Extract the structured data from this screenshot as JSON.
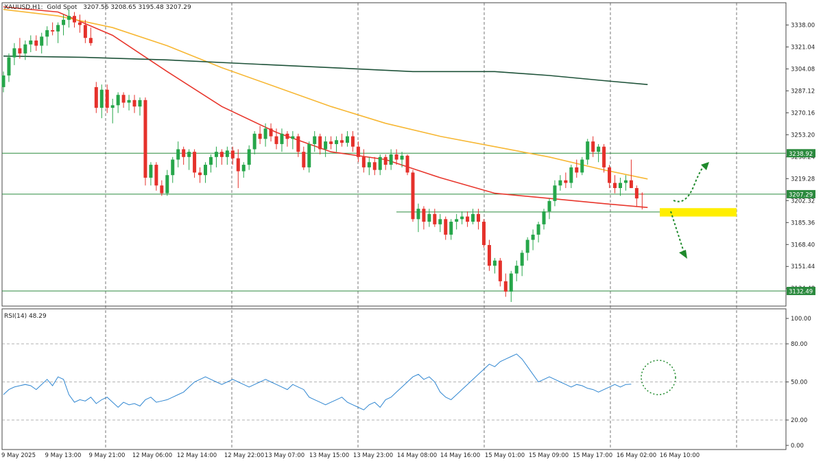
{
  "header": {
    "symbol": "XAUUSD,H1:",
    "description": "Gold Spot",
    "ohlc": "3207.56 3208.65 3195.48 3207.29"
  },
  "rsi_label": "RSI(14) 48.29",
  "colors": {
    "bull": "#26a64a",
    "bear": "#e5312b",
    "ma_fast": "#e8362c",
    "ma_mid": "#f7b733",
    "ma_slow": "#1e5239",
    "level": "#2b8a3e",
    "rsi": "#2f86d1",
    "highlight": "#ffee00",
    "arrow": "#1f8a2c"
  },
  "chart_data": [
    {
      "type": "candlestick",
      "symbol": "XAUUSD",
      "timeframe": "H1",
      "ylim": [
        3124,
        3352
      ],
      "y_ticks": [
        "3338.00",
        "3321.04",
        "3304.08",
        "3287.12",
        "3270.16",
        "3253.20",
        "3236.24",
        "3219.28",
        "3202.32",
        "3185.36",
        "3168.40",
        "3151.44",
        "3134.48"
      ],
      "x_ticks": [
        "9 May 2025",
        "9 May 13:00",
        "9 May 21:00",
        "12 May 06:00",
        "12 May 14:00",
        "12 May 22:00",
        "13 May 07:00",
        "13 May 15:00",
        "13 May 23:00",
        "14 May 08:00",
        "14 May 16:00",
        "15 May 01:00",
        "15 May 09:00",
        "15 May 17:00",
        "16 May 02:00",
        "16 May 10:00"
      ],
      "levels": [
        {
          "value": 3238.92,
          "label": "3238.92"
        },
        {
          "value": 3207.29,
          "label": "3207.29"
        },
        {
          "value": 3132.49,
          "label": "3132.49"
        },
        {
          "value": 3193.5,
          "label": ""
        }
      ],
      "candles": [
        [
          3290,
          3302,
          3286,
          3299
        ],
        [
          3299,
          3316,
          3294,
          3313
        ],
        [
          3313,
          3324,
          3307,
          3320
        ],
        [
          3320,
          3328,
          3312,
          3316
        ],
        [
          3316,
          3326,
          3311,
          3323
        ],
        [
          3323,
          3330,
          3317,
          3326
        ],
        [
          3326,
          3330,
          3318,
          3322
        ],
        [
          3322,
          3332,
          3316,
          3329
        ],
        [
          3329,
          3337,
          3322,
          3334
        ],
        [
          3334,
          3340,
          3330,
          3333
        ],
        [
          3333,
          3340,
          3324,
          3338
        ],
        [
          3338,
          3346,
          3330,
          3342
        ],
        [
          3342,
          3350,
          3336,
          3345
        ],
        [
          3345,
          3348,
          3336,
          3340
        ],
        [
          3340,
          3346,
          3332,
          3338
        ],
        [
          3338,
          3342,
          3324,
          3328
        ],
        [
          3328,
          3336,
          3322,
          3324
        ],
        [
          3290,
          3294,
          3270,
          3274
        ],
        [
          3274,
          3292,
          3266,
          3288
        ],
        [
          3288,
          3292,
          3270,
          3274
        ],
        [
          3274,
          3281,
          3262,
          3276
        ],
        [
          3276,
          3286,
          3270,
          3284
        ],
        [
          3284,
          3286,
          3274,
          3278
        ],
        [
          3278,
          3284,
          3272,
          3280
        ],
        [
          3280,
          3284,
          3270,
          3275
        ],
        [
          3275,
          3282,
          3268,
          3280
        ],
        [
          3280,
          3282,
          3214,
          3220
        ],
        [
          3220,
          3232,
          3214,
          3230
        ],
        [
          3230,
          3232,
          3210,
          3214
        ],
        [
          3214,
          3218,
          3206,
          3208
        ],
        [
          3208,
          3226,
          3206,
          3222
        ],
        [
          3222,
          3236,
          3216,
          3234
        ],
        [
          3234,
          3248,
          3228,
          3242
        ],
        [
          3242,
          3244,
          3230,
          3236
        ],
        [
          3236,
          3242,
          3226,
          3240
        ],
        [
          3240,
          3242,
          3220,
          3224
        ],
        [
          3224,
          3228,
          3216,
          3222
        ],
        [
          3222,
          3232,
          3216,
          3230
        ],
        [
          3230,
          3238,
          3224,
          3236
        ],
        [
          3236,
          3244,
          3228,
          3240
        ],
        [
          3240,
          3242,
          3230,
          3236
        ],
        [
          3236,
          3244,
          3230,
          3241
        ],
        [
          3241,
          3244,
          3230,
          3235
        ],
        [
          3235,
          3242,
          3212,
          3225
        ],
        [
          3225,
          3232,
          3220,
          3230
        ],
        [
          3230,
          3245,
          3226,
          3242
        ],
        [
          3242,
          3256,
          3238,
          3254
        ],
        [
          3254,
          3260,
          3246,
          3250
        ],
        [
          3250,
          3262,
          3244,
          3258
        ],
        [
          3258,
          3262,
          3248,
          3252
        ],
        [
          3252,
          3258,
          3242,
          3246
        ],
        [
          3246,
          3258,
          3240,
          3254
        ],
        [
          3254,
          3256,
          3244,
          3250
        ],
        [
          3250,
          3256,
          3242,
          3252
        ],
        [
          3252,
          3254,
          3236,
          3240
        ],
        [
          3240,
          3244,
          3226,
          3228
        ],
        [
          3228,
          3248,
          3224,
          3246
        ],
        [
          3246,
          3256,
          3240,
          3252
        ],
        [
          3252,
          3254,
          3238,
          3242
        ],
        [
          3242,
          3252,
          3236,
          3248
        ],
        [
          3248,
          3252,
          3242,
          3246
        ],
        [
          3246,
          3252,
          3240,
          3249
        ],
        [
          3249,
          3254,
          3244,
          3247
        ],
        [
          3247,
          3256,
          3244,
          3252
        ],
        [
          3252,
          3256,
          3240,
          3244
        ],
        [
          3244,
          3248,
          3232,
          3236
        ],
        [
          3236,
          3242,
          3224,
          3228
        ],
        [
          3228,
          3236,
          3222,
          3232
        ],
        [
          3232,
          3236,
          3222,
          3226
        ],
        [
          3226,
          3238,
          3222,
          3236
        ],
        [
          3236,
          3238,
          3226,
          3230
        ],
        [
          3230,
          3242,
          3226,
          3238
        ],
        [
          3238,
          3242,
          3230,
          3234
        ],
        [
          3234,
          3240,
          3228,
          3237
        ],
        [
          3237,
          3238,
          3222,
          3224
        ],
        [
          3224,
          3226,
          3186,
          3188
        ],
        [
          3188,
          3200,
          3178,
          3196
        ],
        [
          3196,
          3198,
          3180,
          3186
        ],
        [
          3186,
          3196,
          3182,
          3192
        ],
        [
          3192,
          3196,
          3182,
          3184
        ],
        [
          3184,
          3192,
          3178,
          3188
        ],
        [
          3188,
          3190,
          3172,
          3176
        ],
        [
          3176,
          3188,
          3172,
          3186
        ],
        [
          3186,
          3192,
          3180,
          3188
        ],
        [
          3188,
          3194,
          3184,
          3190
        ],
        [
          3190,
          3194,
          3182,
          3186
        ],
        [
          3186,
          3196,
          3184,
          3192
        ],
        [
          3192,
          3196,
          3180,
          3186
        ],
        [
          3186,
          3188,
          3166,
          3168
        ],
        [
          3168,
          3172,
          3148,
          3152
        ],
        [
          3152,
          3158,
          3146,
          3156
        ],
        [
          3156,
          3158,
          3136,
          3140
        ],
        [
          3140,
          3146,
          3128,
          3132
        ],
        [
          3132,
          3148,
          3124,
          3146
        ],
        [
          3146,
          3156,
          3140,
          3152
        ],
        [
          3152,
          3164,
          3144,
          3162
        ],
        [
          3162,
          3174,
          3156,
          3172
        ],
        [
          3172,
          3180,
          3164,
          3176
        ],
        [
          3176,
          3186,
          3170,
          3184
        ],
        [
          3184,
          3196,
          3180,
          3194
        ],
        [
          3194,
          3204,
          3188,
          3202
        ],
        [
          3202,
          3218,
          3198,
          3214
        ],
        [
          3214,
          3222,
          3210,
          3218
        ],
        [
          3218,
          3224,
          3212,
          3216
        ],
        [
          3216,
          3230,
          3212,
          3228
        ],
        [
          3228,
          3234,
          3220,
          3224
        ],
        [
          3224,
          3236,
          3222,
          3234
        ],
        [
          3234,
          3250,
          3230,
          3248
        ],
        [
          3248,
          3252,
          3236,
          3240
        ],
        [
          3240,
          3246,
          3232,
          3244
        ],
        [
          3244,
          3246,
          3224,
          3228
        ],
        [
          3228,
          3230,
          3212,
          3216
        ],
        [
          3216,
          3222,
          3208,
          3212
        ],
        [
          3212,
          3220,
          3206,
          3216
        ],
        [
          3216,
          3222,
          3210,
          3218
        ],
        [
          3218,
          3234,
          3212,
          3212
        ],
        [
          3212,
          3214,
          3198,
          3204
        ],
        [
          3207.56,
          3208.65,
          3195.48,
          3207.29
        ]
      ],
      "moving_averages": [
        {
          "name": "",
          "color_key": "ma_fast",
          "points": [
            [
              0,
              3352
            ],
            [
              10,
              3348
            ],
            [
              20,
              3330
            ],
            [
              30,
              3302
            ],
            [
              40,
              3275
            ],
            [
              50,
              3255
            ],
            [
              60,
              3240
            ],
            [
              70,
              3234
            ],
            [
              80,
              3220
            ],
            [
              90,
              3208
            ],
            [
              100,
              3204
            ],
            [
              110,
              3200
            ],
            [
              118,
              3197
            ]
          ]
        },
        {
          "name": "",
          "color_key": "ma_mid",
          "points": [
            [
              0,
              3350
            ],
            [
              10,
              3345
            ],
            [
              20,
              3336
            ],
            [
              30,
              3322
            ],
            [
              40,
              3305
            ],
            [
              50,
              3290
            ],
            [
              60,
              3275
            ],
            [
              70,
              3262
            ],
            [
              80,
              3252
            ],
            [
              90,
              3244
            ],
            [
              100,
              3236
            ],
            [
              110,
              3226
            ],
            [
              118,
              3219
            ]
          ]
        },
        {
          "name": "",
          "color_key": "ma_slow",
          "points": [
            [
              0,
              3314
            ],
            [
              15,
              3313
            ],
            [
              30,
              3311
            ],
            [
              45,
              3308
            ],
            [
              60,
              3305
            ],
            [
              75,
              3302
            ],
            [
              90,
              3302
            ],
            [
              100,
              3299
            ],
            [
              110,
              3295
            ],
            [
              118,
              3292
            ]
          ]
        }
      ]
    },
    {
      "type": "line",
      "indicator": "RSI(14)",
      "ylim": [
        0,
        100
      ],
      "y_ticks": [
        "100.00",
        "80.00",
        "50.00",
        "20.00",
        "0.00"
      ],
      "levels": [
        80,
        50,
        20
      ],
      "values": [
        40,
        44,
        46,
        47,
        48,
        47,
        44,
        48,
        52,
        47,
        54,
        52,
        40,
        34,
        36,
        35,
        38,
        33,
        36,
        38,
        34,
        30,
        34,
        32,
        33,
        31,
        36,
        38,
        34,
        35,
        36,
        38,
        40,
        42,
        46,
        50,
        52,
        54,
        52,
        50,
        48,
        50,
        52,
        50,
        48,
        46,
        48,
        50,
        52,
        50,
        48,
        46,
        44,
        48,
        46,
        44,
        38,
        36,
        34,
        32,
        34,
        36,
        38,
        34,
        32,
        30,
        28,
        32,
        34,
        30,
        36,
        38,
        42,
        46,
        50,
        54,
        56,
        52,
        54,
        50,
        42,
        38,
        36,
        40,
        44,
        48,
        52,
        56,
        60,
        64,
        62,
        66,
        68,
        70,
        72,
        68,
        62,
        56,
        50,
        52,
        54,
        52,
        50,
        48,
        46,
        48,
        47,
        45,
        44,
        42,
        44,
        46,
        48,
        46,
        48,
        48.29
      ]
    }
  ]
}
